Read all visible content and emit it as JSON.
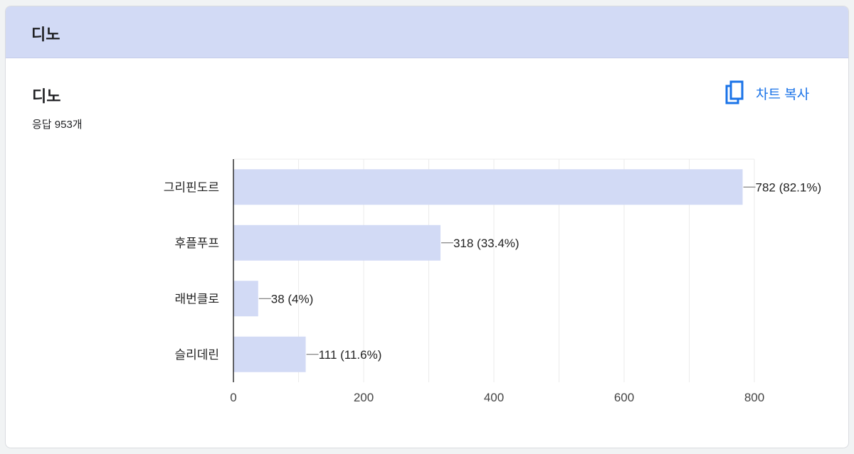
{
  "header": {
    "title": "디노"
  },
  "question": {
    "title": "디노",
    "response_count": "응답 953개"
  },
  "copy_button": {
    "label": "차트 복사",
    "icon": "copy-icon"
  },
  "colors": {
    "bar": "#d2daf5",
    "accent": "#1a73e8",
    "header_bg": "#d2daf5"
  },
  "chart_data": {
    "type": "bar",
    "orientation": "horizontal",
    "categories": [
      "그리핀도르",
      "후플푸프",
      "래번클로",
      "슬리데린"
    ],
    "values": [
      782,
      318,
      38,
      111
    ],
    "data_labels": [
      "782 (82.1%)",
      "318 (33.4%)",
      "38 (4%)",
      "111 (11.6%)"
    ],
    "xlim": [
      0,
      800
    ],
    "x_ticks": [
      0,
      200,
      400,
      600,
      800
    ],
    "grid": true,
    "title": "",
    "xlabel": "",
    "ylabel": ""
  }
}
